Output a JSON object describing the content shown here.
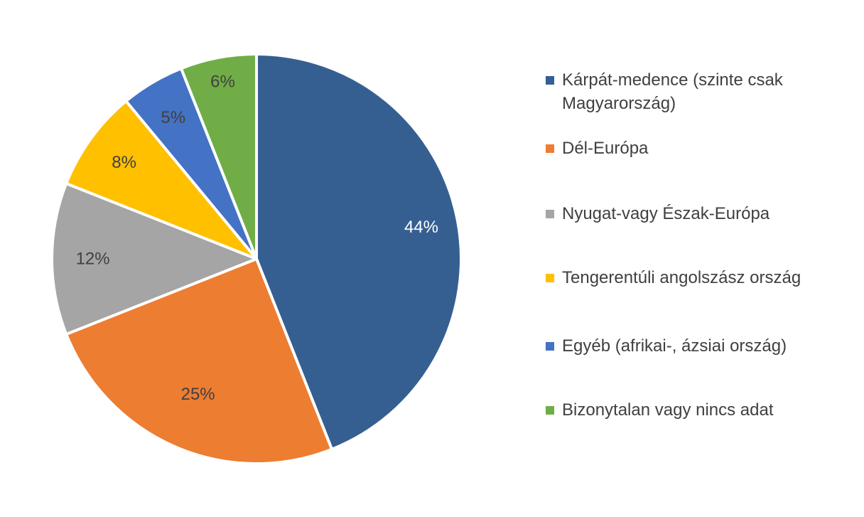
{
  "chart_data": {
    "type": "pie",
    "title": "",
    "categories": [
      "Kárpát-medence (szinte csak Magyarország)",
      "Dél-Európa",
      "Nyugat-vagy Észak-Európa",
      "Tengerentúli angolszász ország",
      "Egyéb (afrikai-, ázsiai ország)",
      "Bizonytalan vagy nincs adat"
    ],
    "values": [
      44,
      25,
      12,
      8,
      5,
      6
    ],
    "data_labels": [
      "44%",
      "25%",
      "12%",
      "8%",
      "5%",
      "6%"
    ],
    "colors": [
      "#365F91",
      "#ED7D31",
      "#A5A5A5",
      "#FFC000",
      "#4472C4",
      "#70AD47"
    ],
    "label_colors": [
      "#ffffff",
      "#404040",
      "#404040",
      "#404040",
      "#404040",
      "#404040"
    ],
    "legend_position": "right",
    "start_angle": "top",
    "direction": "clockwise"
  }
}
